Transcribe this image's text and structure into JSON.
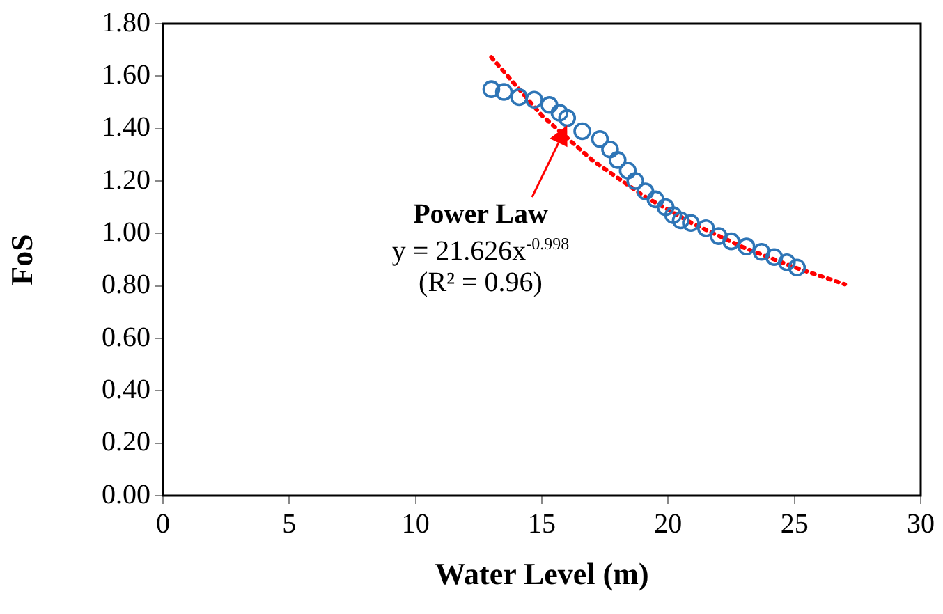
{
  "chart_data": {
    "type": "scatter",
    "xlabel": "Water Level (m)",
    "ylabel": "FoS",
    "xlim": [
      0,
      30
    ],
    "xticks": [
      0,
      5,
      10,
      15,
      20,
      25,
      30
    ],
    "ylim": [
      0,
      1.8
    ],
    "yticks": [
      {
        "value": 0,
        "label": "0.00"
      },
      {
        "value": 0.2,
        "label": "0.20"
      },
      {
        "value": 0.4,
        "label": "0.40"
      },
      {
        "value": 0.6,
        "label": "0.60"
      },
      {
        "value": 0.8,
        "label": "0.80"
      },
      {
        "value": 1,
        "label": "1.00"
      },
      {
        "value": 1.2,
        "label": "1.20"
      },
      {
        "value": 1.4,
        "label": "1.40"
      },
      {
        "value": 1.6,
        "label": "1.60"
      },
      {
        "value": 1.8,
        "label": "1.80"
      }
    ],
    "marker": "circle",
    "legend": false,
    "series": [
      {
        "color": "#2e75b6",
        "x": [
          13.0,
          13.5,
          14.1,
          14.7,
          15.3,
          15.7,
          16.0,
          16.6,
          17.3,
          17.7,
          18.0,
          18.4,
          18.7,
          19.1,
          19.5,
          19.9,
          20.2,
          20.5,
          20.9,
          21.5,
          22.0,
          22.5,
          23.1,
          23.7,
          24.2,
          24.7,
          25.1
        ],
        "values": [
          1.55,
          1.54,
          1.52,
          1.51,
          1.49,
          1.46,
          1.44,
          1.39,
          1.36,
          1.32,
          1.28,
          1.24,
          1.2,
          1.16,
          1.13,
          1.1,
          1.07,
          1.05,
          1.04,
          1.02,
          0.99,
          0.97,
          0.95,
          0.93,
          0.91,
          0.89,
          0.87
        ]
      },
      {
        "type": "line",
        "color": "#ff0000",
        "line_style": "dotted",
        "marker": "none",
        "x": [
          13,
          15,
          17,
          19,
          21,
          23,
          25,
          27
        ],
        "values": [
          1.672,
          1.45,
          1.279,
          1.145,
          1.036,
          0.946,
          0.871,
          0.806
        ]
      }
    ],
    "annotations": [
      {
        "text": "Power Law",
        "x": 16,
        "y": 1.41
      },
      "y = 21.626x$^{-0.998}$",
      "(R² = 0.96)"
    ]
  }
}
